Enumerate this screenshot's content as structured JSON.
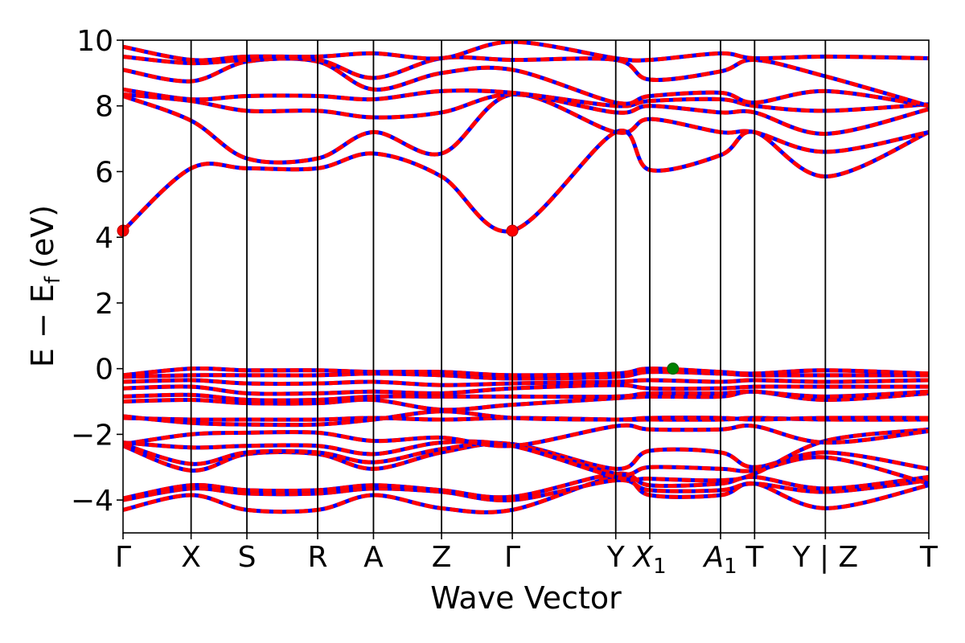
{
  "chart_data": {
    "type": "line",
    "title": "",
    "xlabel": "Wave Vector",
    "ylabel": "E − E",
    "ylabel_subscript": "f",
    "ylabel_unit": "(eV)",
    "ylim": [
      -5,
      10
    ],
    "yticks": [
      -4,
      -2,
      0,
      2,
      4,
      6,
      8,
      10
    ],
    "ytick_labels": [
      "−4",
      "−2",
      "0",
      "2",
      "4",
      "6",
      "8",
      "10"
    ],
    "kpath": [
      {
        "label": "Γ",
        "sub": "",
        "k": 0.0
      },
      {
        "label": "X",
        "sub": "",
        "k": 0.5
      },
      {
        "label": "S",
        "sub": "",
        "k": 0.91
      },
      {
        "label": "R",
        "sub": "",
        "k": 1.43
      },
      {
        "label": "A",
        "sub": "",
        "k": 1.84
      },
      {
        "label": "Z",
        "sub": "",
        "k": 2.34
      },
      {
        "label": "Γ",
        "sub": "",
        "k": 2.86
      },
      {
        "label": "Y",
        "sub": "",
        "k": 3.62
      },
      {
        "label": "X",
        "sub": "1",
        "k": 3.87
      },
      {
        "label": "A",
        "sub": "1",
        "k": 4.39
      },
      {
        "label": "T",
        "sub": "",
        "k": 4.64
      },
      {
        "label": "Y | Z",
        "sub": "",
        "k": 5.16
      },
      {
        "label": "T",
        "sub": "",
        "k": 5.92
      }
    ],
    "xlim": [
      0,
      5.92
    ],
    "series_colors": {
      "spin_up": "#0000ff",
      "spin_down": "#ff0000"
    },
    "point_markers": [
      {
        "name": "CBM",
        "k": 0.0,
        "E": 4.2,
        "color": "#ff0000"
      },
      {
        "name": "CBM",
        "k": 2.86,
        "E": 4.2,
        "color": "#ff0000"
      },
      {
        "name": "VBM",
        "k": 4.04,
        "E": 0.0,
        "color": "#008000"
      }
    ],
    "bands": [
      {
        "k": [
          0,
          0.5,
          0.91,
          1.43,
          1.84,
          2.34,
          2.86,
          3.62,
          3.87,
          4.39,
          4.64,
          5.16,
          5.92
        ],
        "E": [
          -4.3,
          -3.85,
          -4.3,
          -4.3,
          -3.85,
          -4.25,
          -4.3,
          -3.3,
          -3.85,
          -3.85,
          -3.5,
          -4.25,
          -3.55
        ]
      },
      {
        "k": [
          0,
          0.5,
          0.91,
          1.43,
          1.84,
          2.34,
          2.86,
          3.62,
          3.87,
          4.39,
          4.64,
          5.16,
          5.92
        ],
        "E": [
          -4.0,
          -3.65,
          -3.8,
          -3.8,
          -3.65,
          -3.75,
          -4.0,
          -3.4,
          -3.7,
          -3.7,
          -3.5,
          -3.75,
          -3.4
        ]
      },
      {
        "k": [
          0,
          0.5,
          0.91,
          1.43,
          1.84,
          2.34,
          2.86,
          3.62,
          3.87,
          4.39,
          4.64,
          5.16,
          5.92
        ],
        "E": [
          -3.95,
          -3.55,
          -3.7,
          -3.7,
          -3.55,
          -3.7,
          -3.9,
          -3.2,
          -3.55,
          -3.5,
          -3.3,
          -3.65,
          -3.3
        ]
      },
      {
        "k": [
          0,
          0.5,
          0.91,
          1.43,
          1.84,
          2.34,
          2.86,
          3.62,
          3.87,
          4.39,
          4.64,
          5.16,
          5.92
        ],
        "E": [
          -2.35,
          -3.1,
          -2.6,
          -2.6,
          -3.05,
          -2.55,
          -2.3,
          -3.05,
          -2.5,
          -2.55,
          -3.0,
          -2.55,
          -3.05
        ]
      },
      {
        "k": [
          0,
          0.5,
          0.91,
          1.43,
          1.84,
          2.34,
          2.86,
          3.62,
          3.87,
          4.39,
          4.64,
          5.16,
          5.92
        ],
        "E": [
          -2.3,
          -2.9,
          -2.55,
          -2.55,
          -2.85,
          -2.45,
          -2.3,
          -3.2,
          -3.0,
          -3.05,
          -3.1,
          -2.7,
          -3.5
        ]
      },
      {
        "k": [
          0,
          0.5,
          0.91,
          1.43,
          1.84,
          2.34,
          2.86,
          3.62,
          3.87,
          4.39,
          4.64,
          5.16,
          5.92
        ],
        "E": [
          -2.25,
          -2.4,
          -2.35,
          -2.35,
          -2.6,
          -2.25,
          -2.35,
          -3.3,
          -3.35,
          -3.4,
          -3.2,
          -2.2,
          -1.85
        ]
      },
      {
        "k": [
          0,
          0.5,
          0.91,
          1.43,
          1.84,
          2.34,
          2.86,
          3.62,
          3.87,
          4.39,
          4.64,
          5.16,
          5.92
        ],
        "E": [
          -2.3,
          -2.0,
          -1.95,
          -1.95,
          -2.2,
          -2.1,
          -2.35,
          -1.75,
          -1.85,
          -1.85,
          -1.75,
          -2.25,
          -1.9
        ]
      },
      {
        "k": [
          0,
          0.5,
          0.91,
          1.43,
          1.84,
          2.34,
          2.86,
          3.62,
          3.87,
          4.39,
          4.64,
          5.16,
          5.92
        ],
        "E": [
          -1.5,
          -1.55,
          -1.55,
          -1.55,
          -1.5,
          -1.55,
          -1.5,
          -1.55,
          -1.55,
          -1.55,
          -1.5,
          -1.55,
          -1.55
        ]
      },
      {
        "k": [
          0,
          0.5,
          0.91,
          1.43,
          1.84,
          2.34,
          2.86,
          3.62,
          3.87,
          4.39,
          4.64,
          5.16,
          5.92
        ],
        "E": [
          -1.45,
          -1.65,
          -1.7,
          -1.7,
          -1.55,
          -1.3,
          -1.5,
          -1.55,
          -1.5,
          -1.5,
          -1.55,
          -1.5,
          -1.5
        ]
      },
      {
        "k": [
          0,
          0.5,
          0.91,
          1.43,
          1.84,
          2.34,
          2.86,
          3.62,
          3.87,
          4.39,
          4.64,
          5.16,
          5.92
        ],
        "E": [
          -1.0,
          -0.95,
          -1.05,
          -1.05,
          -0.95,
          -1.25,
          -1.1,
          -0.9,
          -0.85,
          -0.85,
          -0.7,
          -0.95,
          -0.75
        ]
      },
      {
        "k": [
          0,
          0.5,
          0.91,
          1.43,
          1.84,
          2.34,
          2.86,
          3.62,
          3.87,
          4.39,
          4.64,
          5.16,
          5.92
        ],
        "E": [
          -0.85,
          -0.8,
          -0.95,
          -0.95,
          -0.85,
          -0.85,
          -0.85,
          -0.85,
          -0.75,
          -0.75,
          -0.7,
          -0.85,
          -0.7
        ]
      },
      {
        "k": [
          0,
          0.5,
          0.91,
          1.43,
          1.84,
          2.34,
          2.86,
          3.62,
          3.87,
          4.39,
          4.64,
          5.16,
          5.92
        ],
        "E": [
          -0.6,
          -0.55,
          -0.75,
          -0.75,
          -0.7,
          -0.75,
          -0.6,
          -0.5,
          -0.6,
          -0.6,
          -0.55,
          -0.55,
          -0.55
        ]
      },
      {
        "k": [
          0,
          0.5,
          0.91,
          1.43,
          1.84,
          2.34,
          2.86,
          3.62,
          3.87,
          4.39,
          4.64,
          5.16,
          5.92
        ],
        "E": [
          -0.4,
          -0.35,
          -0.45,
          -0.45,
          -0.4,
          -0.5,
          -0.45,
          -0.4,
          -0.35,
          -0.4,
          -0.35,
          -0.4,
          -0.35
        ]
      },
      {
        "k": [
          0,
          0.5,
          0.91,
          1.43,
          1.84,
          2.34,
          2.86,
          3.62,
          3.87,
          4.39,
          4.64,
          5.16,
          5.92
        ],
        "E": [
          -0.25,
          -0.2,
          -0.2,
          -0.2,
          -0.15,
          -0.2,
          -0.3,
          -0.25,
          -0.1,
          -0.15,
          -0.2,
          -0.2,
          -0.2
        ]
      },
      {
        "k": [
          0,
          0.5,
          0.91,
          1.43,
          1.84,
          2.34,
          2.86,
          3.62,
          3.87,
          4.39,
          4.64,
          5.16,
          5.92
        ],
        "E": [
          -0.2,
          0.0,
          -0.05,
          -0.05,
          -0.1,
          -0.1,
          -0.2,
          -0.15,
          0.0,
          -0.1,
          -0.15,
          -0.05,
          -0.15
        ]
      },
      {
        "k": [
          0,
          0.5,
          0.91,
          1.43,
          1.84,
          2.34,
          2.86,
          3.62,
          3.87,
          4.39,
          4.64,
          5.16,
          5.92
        ],
        "E": [
          4.2,
          6.1,
          6.1,
          6.1,
          6.55,
          5.85,
          4.2,
          7.2,
          6.05,
          6.5,
          7.2,
          5.85,
          7.2
        ]
      },
      {
        "k": [
          0,
          0.5,
          0.91,
          1.43,
          1.84,
          2.34,
          2.86,
          3.62,
          3.87,
          4.39,
          4.64,
          5.16,
          5.92
        ],
        "E": [
          8.3,
          7.55,
          6.4,
          6.4,
          7.2,
          6.55,
          8.35,
          7.2,
          7.6,
          7.2,
          7.2,
          6.6,
          7.2
        ]
      },
      {
        "k": [
          0,
          0.5,
          0.91,
          1.43,
          1.84,
          2.34,
          2.86,
          3.62,
          3.87,
          4.39,
          4.64,
          5.16,
          5.92
        ],
        "E": [
          8.35,
          8.15,
          7.85,
          7.85,
          7.65,
          7.8,
          8.35,
          7.8,
          8.0,
          7.8,
          7.8,
          7.15,
          7.9
        ]
      },
      {
        "k": [
          0,
          0.5,
          0.91,
          1.43,
          1.84,
          2.34,
          2.86,
          3.62,
          3.87,
          4.39,
          4.64,
          5.16,
          5.92
        ],
        "E": [
          8.5,
          8.2,
          8.3,
          8.3,
          8.2,
          8.45,
          8.4,
          8.0,
          8.15,
          8.2,
          8.0,
          7.85,
          8.05
        ]
      },
      {
        "k": [
          0,
          0.5,
          0.91,
          1.43,
          1.84,
          2.34,
          2.86,
          3.62,
          3.87,
          4.39,
          4.64,
          5.16,
          5.92
        ],
        "E": [
          9.1,
          8.75,
          9.35,
          9.35,
          8.5,
          9.0,
          9.1,
          8.1,
          8.3,
          8.4,
          8.1,
          8.45,
          8.0
        ]
      },
      {
        "k": [
          0,
          0.5,
          0.91,
          1.43,
          1.84,
          2.34,
          2.86,
          3.62,
          3.87,
          4.39,
          4.64,
          5.16,
          5.92
        ],
        "E": [
          9.5,
          9.3,
          9.4,
          9.4,
          8.85,
          9.45,
          9.4,
          9.4,
          8.8,
          9.05,
          9.4,
          8.9,
          8.0
        ]
      },
      {
        "k": [
          0,
          0.5,
          0.91,
          1.43,
          1.84,
          2.34,
          2.86,
          3.62,
          3.87,
          4.39,
          4.64,
          5.16,
          5.92
        ],
        "E": [
          9.8,
          9.4,
          9.5,
          9.5,
          9.6,
          9.45,
          9.95,
          9.45,
          9.4,
          9.6,
          9.45,
          9.5,
          9.45
        ]
      }
    ]
  }
}
